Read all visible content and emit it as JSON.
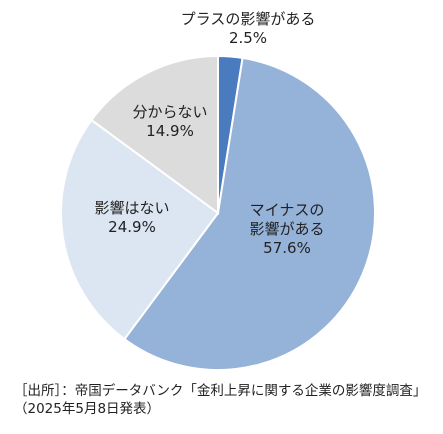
{
  "chart_data": {
    "type": "pie",
    "title": "",
    "slices": [
      {
        "label": "プラスの影響がある",
        "value": 2.5,
        "value_label": "2.5%",
        "color": "#4a7bbf"
      },
      {
        "label": "マイナスの影響がある",
        "value": 57.6,
        "value_label": "57.6%",
        "color": "#95b2d9"
      },
      {
        "label": "影響はない",
        "value": 24.9,
        "value_label": "24.9%",
        "color": "#dce6f2"
      },
      {
        "label": "分からない",
        "value": 14.9,
        "value_label": "14.9%",
        "color": "#dcdcdc"
      }
    ],
    "start_angle": "12 o'clock",
    "direction": "clockwise",
    "legend": "none",
    "data_labels": true
  },
  "labels": {
    "plus": {
      "line1": "プラスの影響がある",
      "value": "2.5%"
    },
    "minus": {
      "line1": "マイナスの",
      "line2": "影響がある",
      "value": "57.6%"
    },
    "none": {
      "line1": "影響はない",
      "value": "24.9%"
    },
    "unknown": {
      "line1": "分からない",
      "value": "14.9%"
    }
  },
  "source": {
    "line1": "［出所］：帝国データバンク「金利上昇に関する企業の影響度調査」",
    "line2": "（2025年5月8日発表）"
  }
}
